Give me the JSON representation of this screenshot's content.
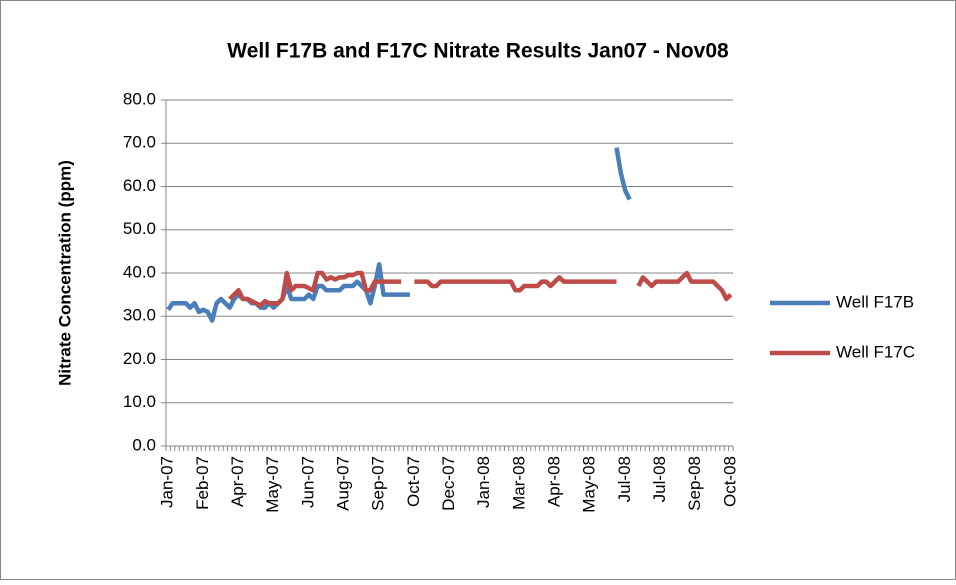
{
  "chart_data": {
    "type": "line",
    "title": "Well F17B and F17C Nitrate Results Jan07 - Nov08",
    "y_label": "Nitrate Concentration (ppm)",
    "categories": [
      "Jan-07",
      null,
      null,
      null,
      null,
      null,
      null,
      null,
      "Feb-07",
      null,
      null,
      null,
      null,
      null,
      null,
      null,
      "Apr-07",
      null,
      null,
      null,
      null,
      null,
      null,
      null,
      "May-07",
      null,
      null,
      null,
      null,
      null,
      null,
      null,
      "Jun-07",
      null,
      null,
      null,
      null,
      null,
      null,
      null,
      "Aug-07",
      null,
      null,
      null,
      null,
      null,
      null,
      null,
      "Sep-07",
      null,
      null,
      null,
      null,
      null,
      null,
      null,
      "Oct-07",
      null,
      null,
      null,
      null,
      null,
      null,
      null,
      "Dec-07",
      null,
      null,
      null,
      null,
      null,
      null,
      null,
      "Jan-08",
      null,
      null,
      null,
      null,
      null,
      null,
      null,
      "Mar-08",
      null,
      null,
      null,
      null,
      null,
      null,
      null,
      "Apr-08",
      null,
      null,
      null,
      null,
      null,
      null,
      null,
      "May-08",
      null,
      null,
      null,
      null,
      null,
      null,
      null,
      "Jul-08",
      null,
      null,
      null,
      null,
      null,
      null,
      null,
      "Jul-08",
      null,
      null,
      null,
      null,
      null,
      null,
      null,
      "Sep-08",
      null,
      null,
      null,
      null,
      null,
      null,
      null,
      "Oct-08"
    ],
    "series": [
      {
        "name": "Well F17B",
        "color": "#4a7ebb",
        "values": [
          31.5,
          33,
          33,
          33,
          33,
          32,
          33,
          31,
          31.5,
          31,
          29,
          33,
          34,
          33,
          32,
          34,
          35,
          34,
          34,
          33,
          33,
          32,
          32,
          33,
          32,
          33,
          34,
          37,
          34,
          34,
          34,
          34,
          35,
          34,
          37,
          37,
          36,
          36,
          36,
          36,
          37,
          37,
          37,
          38,
          37,
          36,
          33,
          37,
          42,
          35,
          35,
          35,
          35,
          35,
          35,
          35,
          null,
          null,
          null,
          null,
          null,
          null,
          null,
          null,
          null,
          null,
          null,
          null,
          null,
          null,
          null,
          null,
          null,
          null,
          null,
          null,
          null,
          null,
          null,
          null,
          null,
          null,
          null,
          null,
          null,
          null,
          null,
          null,
          null,
          null,
          null,
          null,
          null,
          null,
          null,
          null,
          null,
          null,
          null,
          null,
          null,
          null,
          69,
          63,
          59,
          57,
          null,
          null,
          null,
          null,
          null,
          null,
          null,
          null,
          null,
          null,
          null,
          null,
          null,
          null,
          null,
          null,
          null,
          null,
          null,
          null,
          null,
          null,
          null
        ]
      },
      {
        "name": "Well F17C",
        "color": "#be4b48",
        "values": [
          null,
          null,
          null,
          null,
          null,
          null,
          null,
          null,
          null,
          null,
          null,
          null,
          null,
          null,
          34,
          35,
          36,
          34,
          34,
          33.5,
          33,
          32.5,
          33.5,
          33,
          33,
          33,
          34,
          40,
          36,
          37,
          37,
          37,
          36.5,
          36,
          40,
          40,
          38.5,
          39,
          38.5,
          39,
          39,
          39.5,
          39.5,
          40,
          40,
          36,
          36,
          38,
          38,
          38,
          38,
          38,
          38,
          38,
          null,
          null,
          38,
          38,
          38,
          38,
          37,
          37,
          38,
          38,
          38,
          38,
          38,
          38,
          38,
          38,
          38,
          38,
          38,
          38,
          38,
          38,
          38,
          38,
          38,
          36,
          36,
          37,
          37,
          37,
          37,
          38,
          38,
          37,
          38,
          39,
          38,
          38,
          38,
          38,
          38,
          38,
          38,
          38,
          38,
          38,
          38,
          38,
          38,
          null,
          null,
          null,
          null,
          37,
          39,
          38,
          37,
          38,
          38,
          38,
          38,
          38,
          38,
          39,
          40,
          38,
          38,
          38,
          38,
          38,
          38,
          37,
          36,
          34,
          35
        ]
      }
    ],
    "ylim": [
      0,
      80
    ],
    "yticks": [
      {
        "value": 0,
        "label": "0.0"
      },
      {
        "value": 10,
        "label": "10.0"
      },
      {
        "value": 20,
        "label": "20.0"
      },
      {
        "value": 30,
        "label": "30.0"
      },
      {
        "value": 40,
        "label": "40.0"
      },
      {
        "value": 50,
        "label": "50.0"
      },
      {
        "value": 60,
        "label": "60.0"
      },
      {
        "value": 70,
        "label": "70.0"
      },
      {
        "value": 80,
        "label": "80.0"
      }
    ],
    "grid": true,
    "legend": "right"
  }
}
